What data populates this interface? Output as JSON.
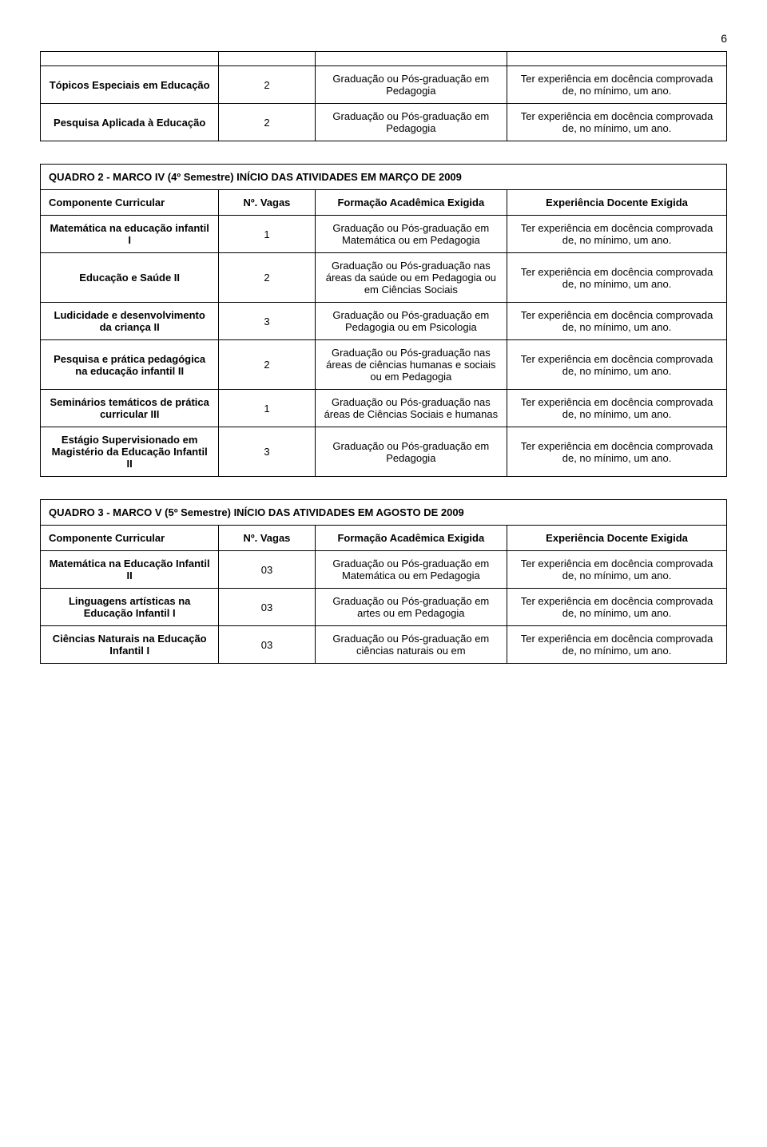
{
  "page_number": "6",
  "table1": {
    "rows": [
      {
        "name": "Tópicos Especiais em Educação",
        "vagas": "2",
        "formacao": "Graduação ou Pós-graduação em Pedagogia",
        "exp": "Ter experiência em docência comprovada de, no mínimo, um ano."
      },
      {
        "name": "Pesquisa Aplicada à Educação",
        "vagas": "2",
        "formacao": "Graduação ou Pós-graduação em Pedagogia",
        "exp": "Ter experiência em docência comprovada de, no mínimo, um ano."
      }
    ]
  },
  "table2": {
    "title": "QUADRO 2 - MARCO IV (4º Semestre) INÍCIO DAS ATIVIDADES EM MARÇO DE 2009",
    "headers": {
      "componente": "Componente Curricular",
      "vagas": "Nº. Vagas",
      "formacao": "Formação Acadêmica Exigida",
      "exp": "Experiência Docente Exigida"
    },
    "rows": [
      {
        "name": "Matemática na educação infantil I",
        "vagas": "1",
        "formacao": "Graduação ou Pós-graduação em Matemática ou em Pedagogia",
        "exp": "Ter experiência em docência comprovada de, no mínimo, um ano."
      },
      {
        "name": "Educação e Saúde II",
        "vagas": "2",
        "formacao": "Graduação ou Pós-graduação nas áreas da saúde ou em Pedagogia ou em Ciências Sociais",
        "exp": "Ter experiência em docência comprovada de, no mínimo, um ano."
      },
      {
        "name": "Ludicidade e desenvolvimento da criança II",
        "vagas": "3",
        "formacao": "Graduação ou Pós-graduação em Pedagogia ou em Psicologia",
        "exp": "Ter experiência em docência comprovada de, no mínimo, um ano."
      },
      {
        "name": "Pesquisa e prática pedagógica na educação infantil II",
        "vagas": "2",
        "formacao": "Graduação ou Pós-graduação nas áreas de ciências humanas e sociais ou em Pedagogia",
        "exp": "Ter experiência em docência comprovada de, no mínimo, um ano."
      },
      {
        "name": "Seminários temáticos de prática curricular III",
        "vagas": "1",
        "formacao": "Graduação ou Pós-graduação nas áreas de Ciências Sociais e humanas",
        "exp": "Ter experiência em docência comprovada de, no mínimo, um ano."
      },
      {
        "name": "Estágio Supervisionado em Magistério da Educação Infantil II",
        "vagas": "3",
        "formacao": "Graduação ou Pós-graduação em Pedagogia",
        "exp": "Ter experiência em docência comprovada de, no mínimo, um ano."
      }
    ]
  },
  "table3": {
    "title": "QUADRO 3 - MARCO V (5º Semestre) INÍCIO DAS ATIVIDADES EM AGOSTO DE 2009",
    "headers": {
      "componente": "Componente Curricular",
      "vagas": "Nº. Vagas",
      "formacao": "Formação Acadêmica Exigida",
      "exp": "Experiência Docente Exigida"
    },
    "rows": [
      {
        "name": "Matemática na Educação Infantil II",
        "vagas": "03",
        "formacao": "Graduação ou Pós-graduação em Matemática ou em Pedagogia",
        "exp": "Ter experiência em docência comprovada de, no mínimo, um ano."
      },
      {
        "name": "Linguagens artísticas na Educação Infantil I",
        "vagas": "03",
        "formacao": "Graduação ou Pós-graduação em artes ou em Pedagogia",
        "exp": "Ter experiência em docência comprovada de, no mínimo, um ano."
      },
      {
        "name": "Ciências Naturais na Educação Infantil I",
        "vagas": "03",
        "formacao": "Graduação ou Pós-graduação em ciências naturais ou em",
        "exp": "Ter experiência em docência comprovada de, no mínimo, um ano."
      }
    ]
  }
}
